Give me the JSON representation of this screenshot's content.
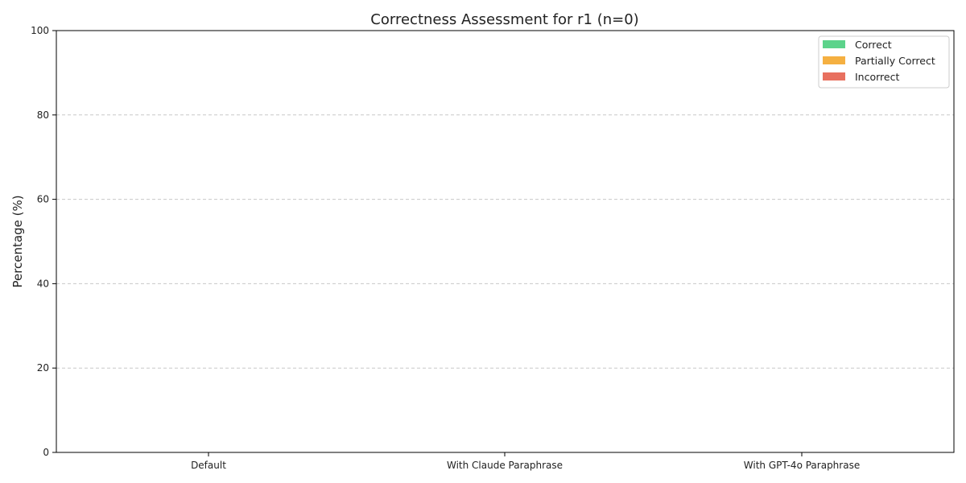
{
  "chart_data": {
    "type": "bar",
    "stacked": true,
    "title": "Correctness Assessment for r1 (n=0)",
    "xlabel": "",
    "ylabel": "Percentage (%)",
    "categories": [
      "Default",
      "With Claude Paraphrase",
      "With GPT-4o Paraphrase"
    ],
    "ylim": [
      0,
      100
    ],
    "yticks": [
      0,
      20,
      40,
      60,
      80,
      100
    ],
    "grid": "y-dashed",
    "legend_position": "top-right",
    "series": [
      {
        "name": "Correct",
        "color": "#5cd38b",
        "values": [
          0,
          0,
          0
        ]
      },
      {
        "name": "Partially Correct",
        "color": "#f5b041",
        "values": [
          0,
          0,
          0
        ]
      },
      {
        "name": "Incorrect",
        "color": "#e8705f",
        "values": [
          0,
          0,
          0
        ]
      }
    ]
  }
}
